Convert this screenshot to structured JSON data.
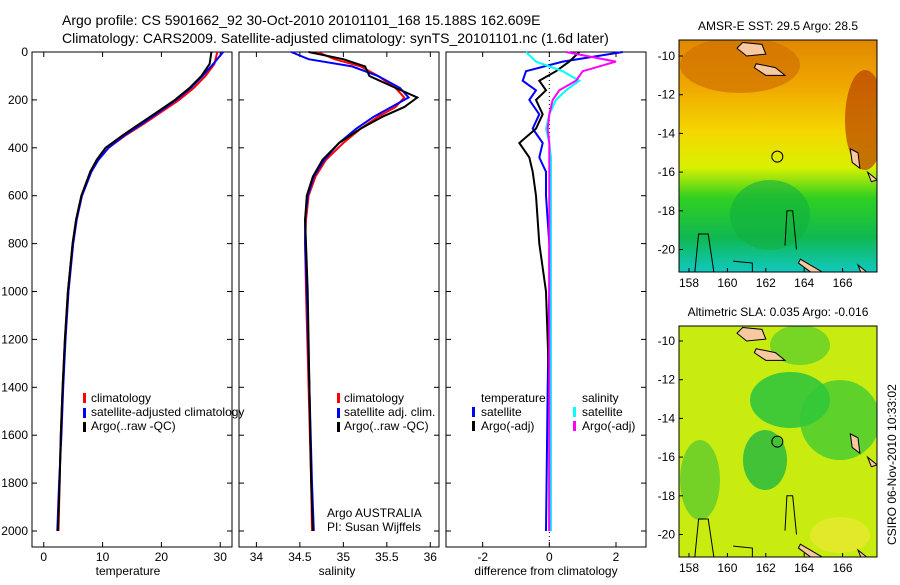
{
  "title_line1": "Argo profile: CS 5901662_92 30-Oct-2010 20101101_168 15.188S 162.609E",
  "title_line2": "Climatology: CARS2009. Satellite-adjusted climatology: synTS_20101101.nc (1.6d later)",
  "side_label": "CSIRO 06-Nov-2010 10:33:02",
  "colors": {
    "climatology": "#ff0000",
    "satellite": "#0000ff",
    "argo": "#000000",
    "sal_satellite": "#00ffff",
    "sal_argo": "#ff00ff"
  },
  "chart_data": [
    {
      "type": "line",
      "xlabel": "temperature",
      "ylabel": "",
      "xlim": [
        -2,
        32
      ],
      "ylim": [
        2050,
        0
      ],
      "xticks": [
        "0",
        "10",
        "20",
        "30"
      ],
      "yticks": [
        "0",
        "200",
        "400",
        "600",
        "800",
        "1000",
        "1200",
        "1400",
        "1600",
        "1800",
        "2000"
      ],
      "depth": [
        0,
        50,
        100,
        150,
        200,
        250,
        300,
        350,
        400,
        450,
        500,
        600,
        700,
        800,
        1000,
        1200,
        1400,
        1600,
        1800,
        2000
      ],
      "legend": [
        "climatology",
        "satellite-adjusted climatology",
        "Argo(..raw -QC)"
      ],
      "series": [
        {
          "name": "climatology",
          "values": [
            29.5,
            29,
            27.5,
            25.5,
            23,
            20,
            17,
            13.8,
            11,
            9.2,
            8,
            6.4,
            5.5,
            4.9,
            4.1,
            3.6,
            3.2,
            2.9,
            2.7,
            2.5
          ]
        },
        {
          "name": "satellite-adjusted climatology",
          "values": [
            30.5,
            28.8,
            27,
            25,
            22.5,
            19.6,
            16.7,
            13.6,
            11,
            9.3,
            8.1,
            6.5,
            5.6,
            5.0,
            4.2,
            3.7,
            3.3,
            3.0,
            2.6,
            2.3
          ]
        },
        {
          "name": "Argo(..raw -QC)",
          "values": [
            28.5,
            28.2,
            26.8,
            24.8,
            22.3,
            19.3,
            16.3,
            13.3,
            10.5,
            9.0,
            7.9,
            6.4,
            5.5,
            4.9,
            4.1,
            3.6,
            3.2,
            2.9,
            2.7,
            2.4
          ]
        }
      ]
    },
    {
      "type": "line",
      "xlabel": "salinity",
      "xlim": [
        33.8,
        36.1
      ],
      "ylim": [
        2050,
        0
      ],
      "xticks": [
        "34",
        "34.5",
        "35",
        "35.5",
        "36"
      ],
      "depth": [
        0,
        30,
        60,
        100,
        150,
        190,
        230,
        270,
        320,
        380,
        450,
        520,
        600,
        700,
        800,
        1000,
        1400,
        1800,
        2000
      ],
      "legend": [
        "climatology",
        "satellite adj. clim.",
        "Argo(..raw -QC)"
      ],
      "annotation": [
        "Argo AUSTRALIA",
        "PI: Susan Wijffels"
      ],
      "series": [
        {
          "name": "climatology",
          "values": [
            34.7,
            34.9,
            35.2,
            35.4,
            35.6,
            35.7,
            35.6,
            35.4,
            35.2,
            35.0,
            34.8,
            34.68,
            34.6,
            34.57,
            34.56,
            34.57,
            34.6,
            34.63,
            34.64
          ]
        },
        {
          "name": "satellite adj. clim.",
          "values": [
            34.4,
            34.6,
            35.1,
            35.4,
            35.65,
            35.75,
            35.55,
            35.35,
            35.15,
            34.95,
            34.78,
            34.66,
            34.59,
            34.56,
            34.56,
            34.58,
            34.61,
            34.64,
            34.66
          ]
        },
        {
          "name": "Argo(..raw -QC)",
          "values": [
            34.6,
            35.0,
            35.25,
            35.3,
            35.6,
            35.85,
            35.7,
            35.45,
            35.2,
            34.95,
            34.76,
            34.65,
            34.58,
            34.56,
            34.57,
            34.59,
            34.61,
            34.63,
            34.65
          ]
        }
      ]
    },
    {
      "type": "line",
      "xlabel": "difference from climatology",
      "xlim": [
        -3.1,
        2.9
      ],
      "ylim": [
        2050,
        0
      ],
      "xticks": [
        "-2",
        "0",
        "2"
      ],
      "depth": [
        0,
        40,
        80,
        120,
        160,
        200,
        260,
        320,
        380,
        440,
        500,
        600,
        800,
        1000,
        1400,
        2000
      ],
      "legend_groups": [
        {
          "title": "temperature",
          "items": [
            "satellite",
            "Argo(-adj)"
          ]
        },
        {
          "title": "salinity",
          "items": [
            "satellite",
            "Argo(-adj)"
          ]
        }
      ],
      "series": [
        {
          "name": "temperature satellite",
          "values": [
            2.2,
            0.4,
            -0.7,
            -0.8,
            -0.4,
            -0.6,
            -0.3,
            -0.5,
            -0.2,
            -0.3,
            -0.1,
            -0.1,
            0,
            0,
            -0.05,
            -0.1
          ]
        },
        {
          "name": "temperature Argo(-adj)",
          "values": [
            0.9,
            0.6,
            0.2,
            -0.3,
            -0.1,
            -0.4,
            -0.2,
            -0.4,
            -0.9,
            -0.6,
            -0.5,
            -0.4,
            -0.3,
            -0.1,
            0,
            0
          ]
        },
        {
          "name": "salinity satellite",
          "values": [
            -0.7,
            -0.4,
            0.4,
            0.9,
            0.5,
            0.2,
            0,
            -0.1,
            0,
            0.05,
            0.05,
            0.05,
            0.05,
            0.05,
            0.05,
            0.05
          ]
        },
        {
          "name": "salinity Argo(-adj)",
          "values": [
            0.5,
            2.0,
            1.0,
            0.8,
            0.3,
            0.1,
            0,
            -0.05,
            0,
            0,
            0,
            0,
            0,
            0,
            0,
            0
          ]
        }
      ]
    }
  ],
  "maps": [
    {
      "title": "AMSR-E SST: 29.5 Argo: 28.5",
      "xticks": [
        "158",
        "160",
        "162",
        "164",
        "166"
      ],
      "yticks": [
        "-10",
        "-12",
        "-14",
        "-16",
        "-18",
        "-20"
      ],
      "float_lon": 162.6,
      "float_lat": -15.2
    },
    {
      "title": "Altimetric SLA: 0.035 Argo: -0.016",
      "xticks": [
        "158",
        "160",
        "162",
        "164",
        "166"
      ],
      "yticks": [
        "-10",
        "-12",
        "-14",
        "-16",
        "-18",
        "-20"
      ],
      "float_lon": 162.6,
      "float_lat": -15.2
    }
  ]
}
